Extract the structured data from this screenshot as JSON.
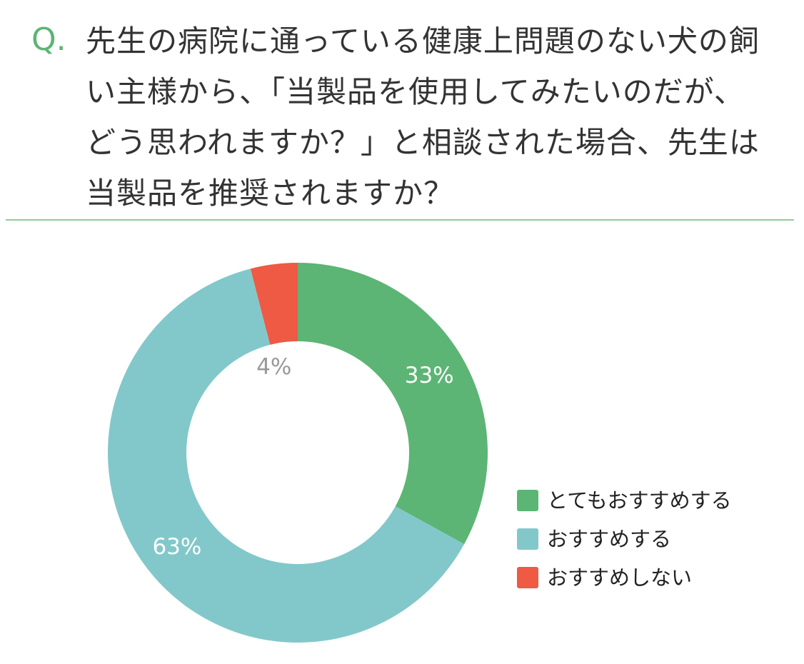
{
  "question": {
    "mark": "Q.",
    "text": "先生の病院に通っている健康上問題のない犬の飼い主様から、「当製品を使用してみたいのだが、どう思われますか？」と相談された場合、先生は当製品を推奨されますか？"
  },
  "colors": {
    "accent": "#5cb574",
    "divider": "#8fcb9e"
  },
  "chart_data": {
    "type": "pie",
    "donut": true,
    "start_angle_deg": 0,
    "direction": "clockwise",
    "legend_position": "bottom-right",
    "slices": [
      {
        "label": "とてもおすすめする",
        "value": 33,
        "display": "33%",
        "color": "#5cb574",
        "label_color": "#ffffff"
      },
      {
        "label": "おすすめする",
        "value": 63,
        "display": "63%",
        "color": "#82c8ca",
        "label_color": "#ffffff"
      },
      {
        "label": "おすすめしない",
        "value": 4,
        "display": "4%",
        "color": "#ee5a44",
        "label_color": "#999999"
      }
    ]
  }
}
